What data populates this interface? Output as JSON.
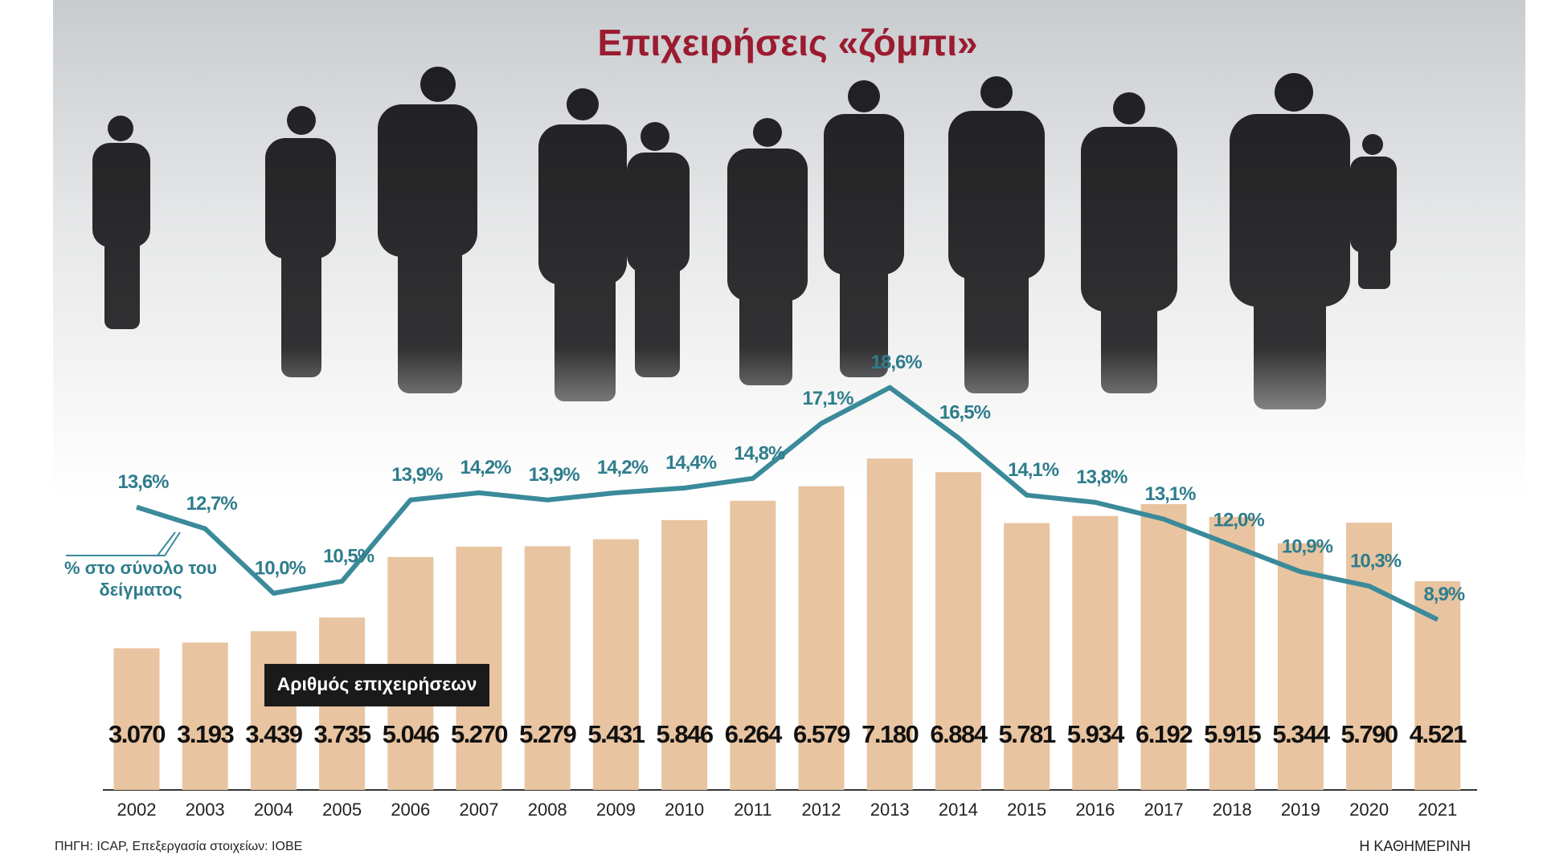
{
  "chart_data": {
    "type": "bar",
    "title": "Επιχειρήσεις «ζόμπι»",
    "categories": [
      "2002",
      "2003",
      "2004",
      "2005",
      "2006",
      "2007",
      "2008",
      "2009",
      "2010",
      "2011",
      "2012",
      "2013",
      "2014",
      "2015",
      "2016",
      "2017",
      "2018",
      "2019",
      "2020",
      "2021"
    ],
    "series": [
      {
        "name": "Αριθμός επιχειρήσεων",
        "type": "bar",
        "color": "#e8c4a0",
        "values": [
          3070,
          3193,
          3439,
          3735,
          5046,
          5270,
          5279,
          5431,
          5846,
          6264,
          6579,
          7180,
          6884,
          5781,
          5934,
          6192,
          5915,
          5344,
          5790,
          4521
        ],
        "value_labels": [
          "3.070",
          "3.193",
          "3.439",
          "3.735",
          "5.046",
          "5.270",
          "5.279",
          "5.431",
          "5.846",
          "6.264",
          "6.579",
          "7.180",
          "6.884",
          "5.781",
          "5.934",
          "6.192",
          "5.915",
          "5.344",
          "5.790",
          "4.521"
        ]
      },
      {
        "name": "% στο σύνολο του δείγματος",
        "type": "line",
        "color": "#3a8a9a",
        "values": [
          13.6,
          12.7,
          10.0,
          10.5,
          13.9,
          14.2,
          13.9,
          14.2,
          14.4,
          14.8,
          17.1,
          18.6,
          16.5,
          14.1,
          13.8,
          13.1,
          12.0,
          10.9,
          10.3,
          8.9
        ],
        "value_labels": [
          "13,6%",
          "12,7%",
          "10,0%",
          "10,5%",
          "13,9%",
          "14,2%",
          "13,9%",
          "14,2%",
          "14,4%",
          "14,8%",
          "17,1%",
          "18,6%",
          "16,5%",
          "14,1%",
          "13,8%",
          "13,1%",
          "12,0%",
          "10,9%",
          "10,3%",
          "8,9%"
        ]
      }
    ],
    "source": "ΠΗΓΗ: ICAP, Επεξεργασία στοιχείων: ΙΟΒΕ",
    "publisher": "Η ΚΑΘΗΜΕΡΙΝΗ"
  }
}
